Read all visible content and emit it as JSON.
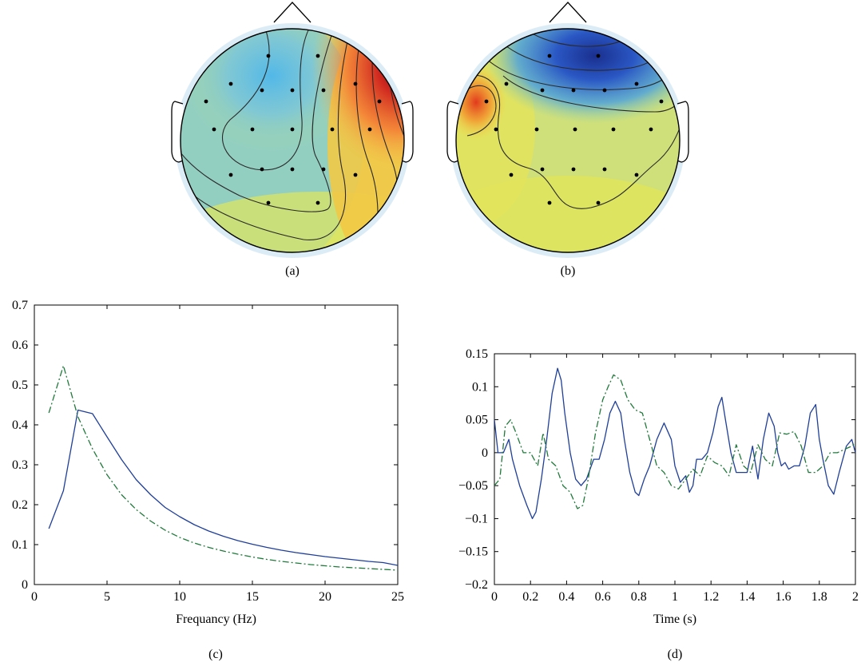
{
  "panels": {
    "a": {
      "caption": "(a)"
    },
    "b": {
      "caption": "(b)"
    },
    "c": {
      "caption": "(c)"
    },
    "d": {
      "caption": "(d)"
    }
  },
  "chart_data": [
    {
      "panel": "a",
      "type": "heatmap",
      "subtype": "scalp-topography",
      "colormap": "jet",
      "electrodes": 24,
      "notes": "positive (red) maximum at right frontal, light blue minimum at left frontal",
      "contour_lines": true,
      "title": "",
      "xlabel": "",
      "ylabel": ""
    },
    {
      "panel": "b",
      "type": "heatmap",
      "subtype": "scalp-topography",
      "colormap": "jet",
      "electrodes": 24,
      "notes": "dark blue minimum at frontal midline, orange maximum at left temporal",
      "contour_lines": true,
      "title": "",
      "xlabel": "",
      "ylabel": ""
    },
    {
      "panel": "c",
      "type": "line",
      "title": "",
      "xlabel": "Frequancy (Hz)",
      "ylabel": "",
      "xlim": [
        0,
        25
      ],
      "ylim": [
        0,
        0.7
      ],
      "xticks": [
        0,
        5,
        10,
        15,
        20,
        25
      ],
      "yticks": [
        0,
        0.1,
        0.2,
        0.3,
        0.4,
        0.5,
        0.6,
        0.7
      ],
      "grid": false,
      "series": [
        {
          "color": "#1f3f99",
          "style": "solid",
          "x": [
            1,
            2,
            3,
            4,
            5,
            6,
            7,
            8,
            9,
            10,
            11,
            12,
            13,
            14,
            15,
            16,
            17,
            18,
            19,
            20,
            21,
            22,
            23,
            24,
            25
          ],
          "y": [
            0.14,
            0.235,
            0.437,
            0.428,
            0.37,
            0.313,
            0.263,
            0.225,
            0.193,
            0.17,
            0.15,
            0.134,
            0.121,
            0.11,
            0.101,
            0.093,
            0.086,
            0.08,
            0.075,
            0.07,
            0.066,
            0.062,
            0.058,
            0.055,
            0.048
          ]
        },
        {
          "color": "#1f7a3a",
          "style": "dashdot",
          "x": [
            1,
            2,
            3,
            4,
            5,
            6,
            7,
            8,
            9,
            10,
            11,
            12,
            13,
            14,
            15,
            16,
            17,
            18,
            19,
            20,
            21,
            22,
            23,
            24,
            25
          ],
          "y": [
            0.43,
            0.548,
            0.42,
            0.34,
            0.275,
            0.225,
            0.188,
            0.159,
            0.136,
            0.118,
            0.104,
            0.093,
            0.084,
            0.076,
            0.069,
            0.063,
            0.058,
            0.054,
            0.05,
            0.047,
            0.044,
            0.042,
            0.04,
            0.038,
            0.036
          ]
        }
      ]
    },
    {
      "panel": "d",
      "type": "line",
      "title": "",
      "xlabel": "Time (s)",
      "ylabel": "",
      "xlim": [
        0,
        2
      ],
      "ylim": [
        -0.2,
        0.15
      ],
      "xticks": [
        0,
        0.2,
        0.4,
        0.6,
        0.8,
        1,
        1.2,
        1.4,
        1.6,
        1.8,
        2
      ],
      "xticklabels": [
        "0",
        "0.2",
        "0.4",
        "0.6",
        "0.8",
        "1",
        "1.2",
        "1.4",
        "1.6",
        "1.8",
        "2"
      ],
      "yticks": [
        -0.2,
        -0.15,
        -0.1,
        -0.05,
        0,
        0.05,
        0.1,
        0.15
      ],
      "yticklabels": [
        "−0.2",
        "−0.15",
        "−0.1",
        "−0.05",
        "0",
        "0.05",
        "0.1",
        "0.15"
      ],
      "grid": false,
      "series": [
        {
          "color": "#1f3f99",
          "style": "solid",
          "x": [
            0,
            0.02,
            0.05,
            0.08,
            0.1,
            0.14,
            0.18,
            0.21,
            0.23,
            0.26,
            0.29,
            0.32,
            0.35,
            0.37,
            0.39,
            0.42,
            0.45,
            0.48,
            0.51,
            0.55,
            0.58,
            0.61,
            0.64,
            0.67,
            0.7,
            0.72,
            0.75,
            0.78,
            0.8,
            0.83,
            0.86,
            0.9,
            0.94,
            0.98,
            1.0,
            1.03,
            1.06,
            1.08,
            1.1,
            1.12,
            1.15,
            1.18,
            1.21,
            1.24,
            1.26,
            1.28,
            1.31,
            1.34,
            1.37,
            1.4,
            1.43,
            1.46,
            1.49,
            1.52,
            1.55,
            1.57,
            1.59,
            1.61,
            1.63,
            1.66,
            1.69,
            1.72,
            1.75,
            1.78,
            1.8,
            1.82,
            1.85,
            1.88,
            1.91,
            1.95,
            1.98,
            2.0
          ],
          "y": [
            0.05,
            0.0,
            0.0,
            0.02,
            -0.01,
            -0.05,
            -0.08,
            -0.1,
            -0.09,
            -0.04,
            0.02,
            0.09,
            0.128,
            0.11,
            0.06,
            0.0,
            -0.04,
            -0.05,
            -0.04,
            -0.01,
            -0.01,
            0.02,
            0.06,
            0.078,
            0.06,
            0.02,
            -0.03,
            -0.06,
            -0.065,
            -0.04,
            -0.02,
            0.02,
            0.045,
            0.02,
            -0.02,
            -0.045,
            -0.035,
            -0.06,
            -0.05,
            -0.01,
            -0.01,
            0.0,
            0.03,
            0.07,
            0.084,
            0.05,
            0.0,
            -0.03,
            -0.03,
            -0.03,
            0.01,
            -0.04,
            0.02,
            0.06,
            0.04,
            0.0,
            -0.02,
            -0.015,
            -0.025,
            -0.02,
            -0.02,
            0.01,
            0.06,
            0.073,
            0.02,
            -0.01,
            -0.05,
            -0.063,
            -0.03,
            0.01,
            0.02,
            0.0
          ]
        },
        {
          "color": "#1f7a3a",
          "style": "dashdot",
          "x": [
            0,
            0.03,
            0.06,
            0.09,
            0.12,
            0.16,
            0.2,
            0.24,
            0.27,
            0.3,
            0.34,
            0.38,
            0.42,
            0.46,
            0.49,
            0.52,
            0.56,
            0.6,
            0.63,
            0.66,
            0.7,
            0.74,
            0.78,
            0.82,
            0.86,
            0.9,
            0.94,
            0.98,
            1.02,
            1.06,
            1.1,
            1.14,
            1.18,
            1.22,
            1.26,
            1.3,
            1.34,
            1.38,
            1.42,
            1.46,
            1.5,
            1.54,
            1.58,
            1.62,
            1.66,
            1.7,
            1.74,
            1.78,
            1.82,
            1.86,
            1.9,
            1.94,
            1.98,
            2.0
          ],
          "y": [
            -0.05,
            -0.04,
            0.04,
            0.05,
            0.03,
            0.0,
            0.0,
            -0.02,
            0.03,
            -0.01,
            -0.02,
            -0.05,
            -0.06,
            -0.085,
            -0.08,
            -0.04,
            0.03,
            0.08,
            0.1,
            0.118,
            0.11,
            0.08,
            0.065,
            0.06,
            0.02,
            -0.02,
            -0.03,
            -0.05,
            -0.055,
            -0.04,
            -0.025,
            -0.035,
            -0.005,
            -0.015,
            -0.02,
            -0.035,
            0.012,
            -0.02,
            -0.03,
            0.012,
            -0.01,
            -0.02,
            0.03,
            0.028,
            0.032,
            0.01,
            -0.03,
            -0.03,
            -0.02,
            0.0,
            0.0,
            0.005,
            0.01,
            0.015
          ]
        }
      ]
    }
  ]
}
